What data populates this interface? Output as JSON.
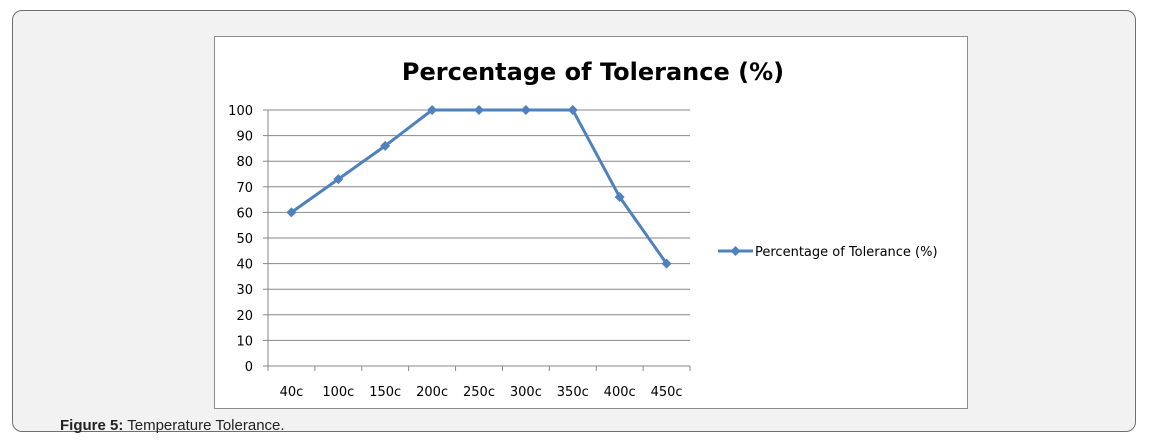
{
  "figure": {
    "caption_label": "Figure 5:",
    "caption_text": " Temperature Tolerance."
  },
  "colors": {
    "series": "#4f81bd",
    "gridline": "#878787",
    "axis": "#878787",
    "text": "#000000"
  },
  "chart_data": {
    "type": "line",
    "title": "Percentage of Tolerance (%)",
    "categories": [
      "40c",
      "100c",
      "150c",
      "200c",
      "250c",
      "300c",
      "350c",
      "400c",
      "450c"
    ],
    "series": [
      {
        "name": "Percentage of Tolerance (%)",
        "values": [
          60,
          73,
          86,
          100,
          100,
          100,
          100,
          66,
          40
        ],
        "marker": "diamond"
      }
    ],
    "ylim": [
      0,
      100
    ],
    "yticks": [
      0,
      10,
      20,
      30,
      40,
      50,
      60,
      70,
      80,
      90,
      100
    ],
    "xlabel": "",
    "ylabel": "",
    "grid": true,
    "legend": "right"
  }
}
